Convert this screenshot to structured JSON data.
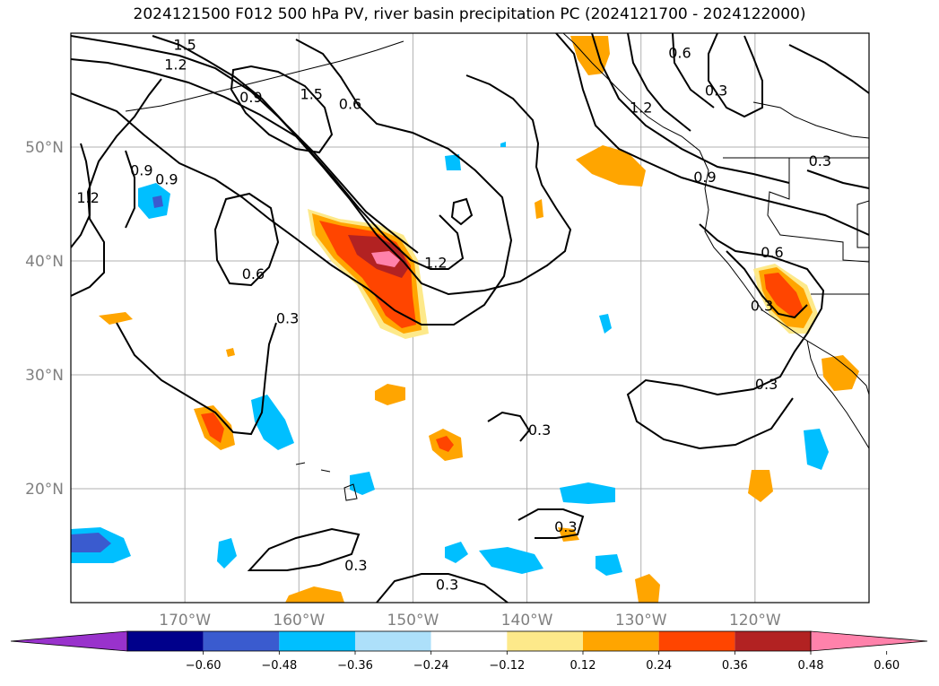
{
  "title": "2024121500 F012 500 hPa PV, river basin precipitation PC (2024121700 - 2024122000)",
  "chart_data": {
    "type": "contour-map",
    "title": "2024121500 F012 500 hPa PV, river basin precipitation PC (2024121700 - 2024122000)",
    "lon_range": [
      -180,
      -110
    ],
    "lat_range": [
      10,
      60
    ],
    "grid": true,
    "lat_ticks": [
      {
        "value": 20,
        "label": "20°N"
      },
      {
        "value": 30,
        "label": "30°N"
      },
      {
        "value": 40,
        "label": "40°N"
      },
      {
        "value": 50,
        "label": "50°N"
      }
    ],
    "lon_ticks": [
      {
        "value": -170,
        "label": "170°W"
      },
      {
        "value": -160,
        "label": "160°W"
      },
      {
        "value": -150,
        "label": "150°W"
      },
      {
        "value": -140,
        "label": "140°W"
      },
      {
        "value": -130,
        "label": "130°W"
      },
      {
        "value": -120,
        "label": "120°W"
      }
    ],
    "colorbar": {
      "placement": "bottom",
      "extend": "both",
      "levels": [
        -0.6,
        -0.48,
        -0.36,
        -0.24,
        -0.12,
        0.12,
        0.24,
        0.36,
        0.48,
        0.6
      ],
      "tick_labels": [
        "−0.60",
        "−0.48",
        "−0.36",
        "−0.24",
        "−0.12",
        "0.12",
        "0.24",
        "0.36",
        "0.48",
        "0.60"
      ],
      "colors": [
        "#9932cc",
        "#00008b",
        "#3a5bcf",
        "#00bfff",
        "#ade0fa",
        "#ffffff",
        "#fde98a",
        "#ffa500",
        "#ff4500",
        "#b22222",
        "#ff82ab"
      ]
    },
    "pv_contour_labels": [
      {
        "text": "1.5",
        "lon": -170.0,
        "lat": 59.0
      },
      {
        "text": "1.2",
        "lon": -170.8,
        "lat": 57.3
      },
      {
        "text": "0.9",
        "lon": -164.2,
        "lat": 54.4
      },
      {
        "text": "1.5",
        "lon": -158.9,
        "lat": 54.7
      },
      {
        "text": "0.6",
        "lon": -155.5,
        "lat": 53.8
      },
      {
        "text": "0.9",
        "lon": -173.8,
        "lat": 48.0
      },
      {
        "text": "0.9",
        "lon": -171.6,
        "lat": 47.2
      },
      {
        "text": "1.2",
        "lon": -178.5,
        "lat": 45.6
      },
      {
        "text": "0.6",
        "lon": -164.0,
        "lat": 38.9
      },
      {
        "text": "0.3",
        "lon": -161.0,
        "lat": 35.0
      },
      {
        "text": "1.2",
        "lon": -148.0,
        "lat": 39.9
      },
      {
        "text": "0.3",
        "lon": -138.9,
        "lat": 25.2
      },
      {
        "text": "0.3",
        "lon": -136.6,
        "lat": 16.7
      },
      {
        "text": "0.3",
        "lon": -155.0,
        "lat": 13.3
      },
      {
        "text": "0.3",
        "lon": -147.0,
        "lat": 11.6
      },
      {
        "text": "0.6",
        "lon": -126.6,
        "lat": 58.3
      },
      {
        "text": "1.2",
        "lon": -130.0,
        "lat": 53.5
      },
      {
        "text": "0.3",
        "lon": -123.4,
        "lat": 55.0
      },
      {
        "text": "0.9",
        "lon": -124.4,
        "lat": 47.4
      },
      {
        "text": "0.3",
        "lon": -114.3,
        "lat": 48.8
      },
      {
        "text": "0.6",
        "lon": -118.5,
        "lat": 40.8
      },
      {
        "text": "0.3",
        "lon": -119.4,
        "lat": 36.1
      },
      {
        "text": "0.3",
        "lon": -119.0,
        "lat": 29.2
      }
    ]
  }
}
